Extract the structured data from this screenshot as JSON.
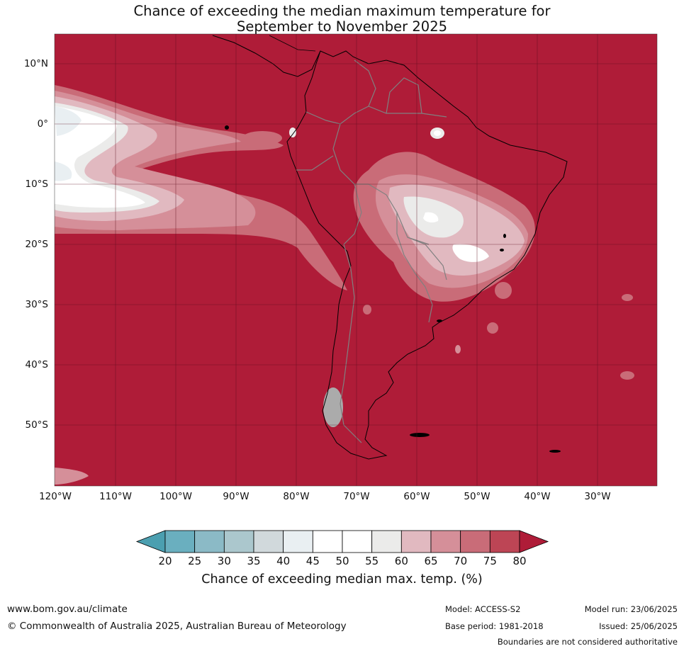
{
  "title_line1": "Chance of exceeding the median maximum temperature for",
  "title_line2": "September to November 2025",
  "lat_labels": [
    "10°N",
    "0°",
    "10°S",
    "20°S",
    "30°S",
    "40°S",
    "50°S"
  ],
  "lon_labels": [
    "120°W",
    "110°W",
    "100°W",
    "90°W",
    "80°W",
    "70°W",
    "60°W",
    "50°W",
    "40°W",
    "30°W"
  ],
  "colorbar": {
    "ticks": [
      "20",
      "25",
      "30",
      "35",
      "40",
      "45",
      "50",
      "55",
      "60",
      "65",
      "70",
      "75",
      "80"
    ],
    "colors": [
      "#4b9fb0",
      "#6aafbf",
      "#8bbac6",
      "#abc7cd",
      "#d1d9dc",
      "#e9eff2",
      "#ffffff",
      "#ffffff",
      "#ebebea",
      "#e1b9c0",
      "#d58f99",
      "#c96c78",
      "#bd4555",
      "#af1c38"
    ],
    "label": "Chance of exceeding median max. temp. (%)"
  },
  "map_colors": {
    "dominant": "#af1c38",
    "near_median": "#ffffff",
    "coast": "#000000",
    "borders": "#808080"
  },
  "footer": {
    "url": "www.bom.gov.au/climate",
    "copyright": "© Commonwealth of Australia 2025, Australian Bureau of Meteorology",
    "model": "Model: ACCESS-S2",
    "base_period": "Base period: 1981-2018",
    "model_run": "Model run: 23/06/2025",
    "issued": "Issued: 25/06/2025",
    "boundaries": "Boundaries are not considered authoritative"
  }
}
